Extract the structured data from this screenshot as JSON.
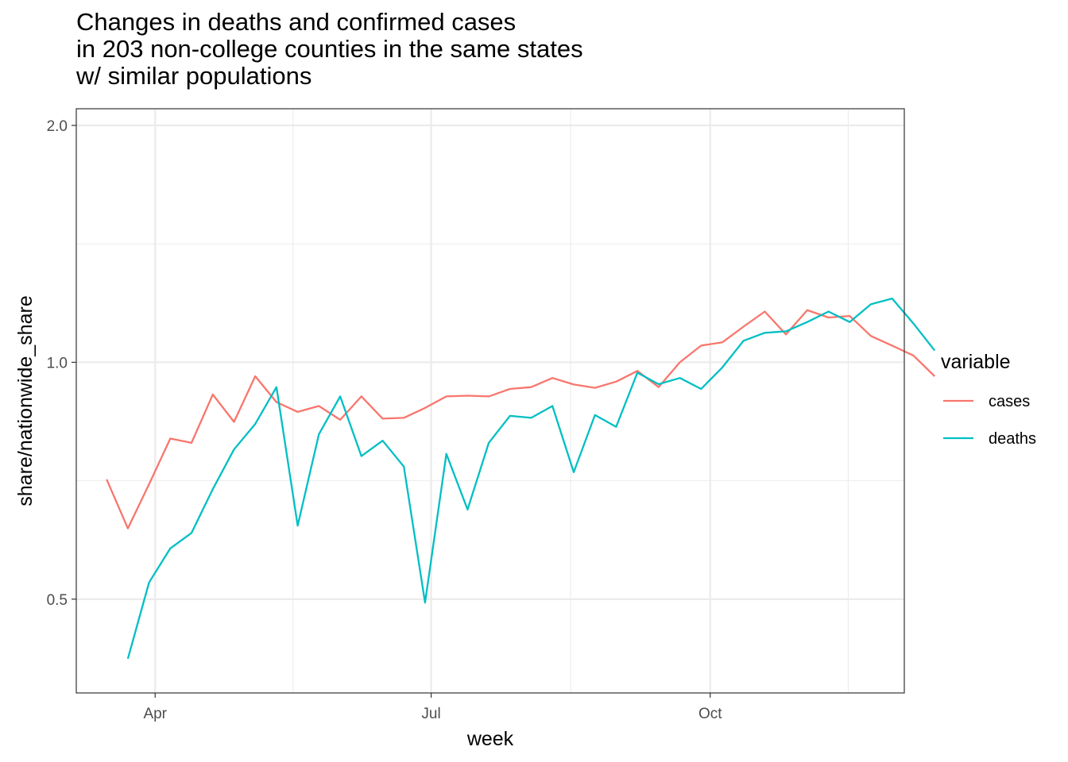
{
  "chart_data": {
    "type": "line",
    "title": "Changes in deaths and confirmed cases\nin 203 non-college counties in the same states\nw/ similar populations",
    "xlabel": "week",
    "ylabel": "share/nationwide_share",
    "y_scale": "log",
    "ylim": [
      0.38,
      2.1
    ],
    "y_ticks": [
      {
        "value": 0.5,
        "label": "0.5"
      },
      {
        "value": 1.0,
        "label": "1.0"
      },
      {
        "value": 2.0,
        "label": "2.0"
      }
    ],
    "xlim": [
      "2020-03-06",
      "2020-12-04"
    ],
    "x_ticks": [
      {
        "value": "2020-04-01",
        "label": "Apr"
      },
      {
        "value": "2020-07-01",
        "label": "Jul"
      },
      {
        "value": "2020-10-01",
        "label": "Oct"
      }
    ],
    "grid": true,
    "legend": {
      "title": "variable",
      "position": "right"
    },
    "series": [
      {
        "name": "cases",
        "color": "#F8766D",
        "points": [
          {
            "x": "2020-03-16",
            "y": 0.71
          },
          {
            "x": "2020-03-23",
            "y": 0.615
          },
          {
            "x": "2020-03-30",
            "y": 0.7
          },
          {
            "x": "2020-04-06",
            "y": 0.8
          },
          {
            "x": "2020-04-13",
            "y": 0.79
          },
          {
            "x": "2020-04-20",
            "y": 0.91
          },
          {
            "x": "2020-04-27",
            "y": 0.84
          },
          {
            "x": "2020-05-04",
            "y": 0.96
          },
          {
            "x": "2020-05-11",
            "y": 0.89
          },
          {
            "x": "2020-05-18",
            "y": 0.865
          },
          {
            "x": "2020-05-25",
            "y": 0.88
          },
          {
            "x": "2020-06-01",
            "y": 0.845
          },
          {
            "x": "2020-06-08",
            "y": 0.905
          },
          {
            "x": "2020-06-15",
            "y": 0.848
          },
          {
            "x": "2020-06-22",
            "y": 0.85
          },
          {
            "x": "2020-06-29",
            "y": 0.875
          },
          {
            "x": "2020-07-06",
            "y": 0.905
          },
          {
            "x": "2020-07-13",
            "y": 0.907
          },
          {
            "x": "2020-07-20",
            "y": 0.905
          },
          {
            "x": "2020-07-27",
            "y": 0.925
          },
          {
            "x": "2020-08-03",
            "y": 0.93
          },
          {
            "x": "2020-08-10",
            "y": 0.955
          },
          {
            "x": "2020-08-17",
            "y": 0.937
          },
          {
            "x": "2020-08-24",
            "y": 0.928
          },
          {
            "x": "2020-08-31",
            "y": 0.945
          },
          {
            "x": "2020-09-07",
            "y": 0.975
          },
          {
            "x": "2020-09-14",
            "y": 0.93
          },
          {
            "x": "2020-09-21",
            "y": 1.0
          },
          {
            "x": "2020-09-28",
            "y": 1.05
          },
          {
            "x": "2020-10-05",
            "y": 1.06
          },
          {
            "x": "2020-10-12",
            "y": 1.11
          },
          {
            "x": "2020-10-19",
            "y": 1.16
          },
          {
            "x": "2020-10-26",
            "y": 1.085
          },
          {
            "x": "2020-11-02",
            "y": 1.165
          },
          {
            "x": "2020-11-09",
            "y": 1.14
          },
          {
            "x": "2020-11-16",
            "y": 1.145
          },
          {
            "x": "2020-11-23",
            "y": 1.08
          },
          {
            "x": "2020-11-30",
            "y": 1.05
          },
          {
            "x": "2020-12-07",
            "y": 1.02
          },
          {
            "x": "2020-12-14",
            "y": 0.96
          }
        ]
      },
      {
        "name": "deaths",
        "color": "#00BFC4",
        "points": [
          {
            "x": "2020-03-23",
            "y": 0.42
          },
          {
            "x": "2020-03-30",
            "y": 0.525
          },
          {
            "x": "2020-04-06",
            "y": 0.58
          },
          {
            "x": "2020-04-13",
            "y": 0.607
          },
          {
            "x": "2020-04-20",
            "y": 0.69
          },
          {
            "x": "2020-04-27",
            "y": 0.775
          },
          {
            "x": "2020-05-04",
            "y": 0.835
          },
          {
            "x": "2020-05-11",
            "y": 0.93
          },
          {
            "x": "2020-05-18",
            "y": 0.62
          },
          {
            "x": "2020-05-25",
            "y": 0.81
          },
          {
            "x": "2020-06-01",
            "y": 0.905
          },
          {
            "x": "2020-06-08",
            "y": 0.76
          },
          {
            "x": "2020-06-15",
            "y": 0.795
          },
          {
            "x": "2020-06-22",
            "y": 0.737
          },
          {
            "x": "2020-06-29",
            "y": 0.495
          },
          {
            "x": "2020-07-06",
            "y": 0.765
          },
          {
            "x": "2020-07-13",
            "y": 0.65
          },
          {
            "x": "2020-07-20",
            "y": 0.79
          },
          {
            "x": "2020-07-27",
            "y": 0.855
          },
          {
            "x": "2020-08-03",
            "y": 0.85
          },
          {
            "x": "2020-08-10",
            "y": 0.88
          },
          {
            "x": "2020-08-17",
            "y": 0.725
          },
          {
            "x": "2020-08-24",
            "y": 0.857
          },
          {
            "x": "2020-08-31",
            "y": 0.828
          },
          {
            "x": "2020-09-07",
            "y": 0.97
          },
          {
            "x": "2020-09-14",
            "y": 0.938
          },
          {
            "x": "2020-09-21",
            "y": 0.955
          },
          {
            "x": "2020-09-28",
            "y": 0.925
          },
          {
            "x": "2020-10-05",
            "y": 0.985
          },
          {
            "x": "2020-10-12",
            "y": 1.065
          },
          {
            "x": "2020-10-19",
            "y": 1.09
          },
          {
            "x": "2020-10-26",
            "y": 1.095
          },
          {
            "x": "2020-11-02",
            "y": 1.125
          },
          {
            "x": "2020-11-09",
            "y": 1.16
          },
          {
            "x": "2020-11-16",
            "y": 1.125
          },
          {
            "x": "2020-11-23",
            "y": 1.185
          },
          {
            "x": "2020-11-30",
            "y": 1.205
          },
          {
            "x": "2020-12-07",
            "y": 1.12
          },
          {
            "x": "2020-12-14",
            "y": 1.035
          }
        ]
      }
    ]
  }
}
